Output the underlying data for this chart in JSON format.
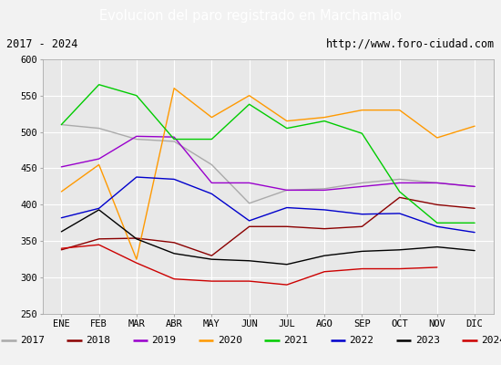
{
  "title": "Evolucion del paro registrado en Marchamalo",
  "subtitle_left": "2017 - 2024",
  "subtitle_right": "http://www.foro-ciudad.com",
  "ylim": [
    250,
    600
  ],
  "yticks": [
    250,
    300,
    350,
    400,
    450,
    500,
    550,
    600
  ],
  "months": [
    "ENE",
    "FEB",
    "MAR",
    "ABR",
    "MAY",
    "JUN",
    "JUL",
    "AGO",
    "SEP",
    "OCT",
    "NOV",
    "DIC"
  ],
  "series": {
    "2017": {
      "color": "#aaaaaa",
      "data": [
        510,
        505,
        490,
        487,
        455,
        402,
        420,
        422,
        430,
        435,
        430,
        425
      ]
    },
    "2018": {
      "color": "#8b0000",
      "data": [
        338,
        353,
        354,
        348,
        330,
        370,
        370,
        367,
        370,
        410,
        400,
        395
      ]
    },
    "2019": {
      "color": "#9900cc",
      "data": [
        452,
        463,
        494,
        493,
        430,
        430,
        420,
        420,
        425,
        430,
        430,
        425
      ]
    },
    "2020": {
      "color": "#ff9900",
      "data": [
        418,
        455,
        325,
        560,
        520,
        550,
        515,
        520,
        530,
        530,
        492,
        508
      ]
    },
    "2021": {
      "color": "#00cc00",
      "data": [
        510,
        565,
        550,
        490,
        490,
        538,
        505,
        515,
        498,
        418,
        375,
        375
      ]
    },
    "2022": {
      "color": "#0000cc",
      "data": [
        382,
        395,
        438,
        435,
        415,
        378,
        396,
        393,
        387,
        388,
        370,
        362
      ]
    },
    "2023": {
      "color": "#000000",
      "data": [
        363,
        393,
        353,
        333,
        325,
        323,
        318,
        330,
        336,
        338,
        342,
        337
      ]
    },
    "2024": {
      "color": "#cc0000",
      "data": [
        340,
        345,
        320,
        298,
        295,
        295,
        290,
        308,
        312,
        312,
        314,
        null
      ]
    }
  },
  "title_bg_color": "#3a6abf",
  "title_fg_color": "#ffffff",
  "plot_bg_color": "#e8e8e8",
  "grid_color": "#ffffff",
  "frame_bg_color": "#f2f2f2",
  "legend_bg_color": "#ffffff",
  "title_fontsize": 10.5,
  "subtitle_fontsize": 8.5,
  "tick_fontsize": 7.5,
  "legend_fontsize": 8
}
